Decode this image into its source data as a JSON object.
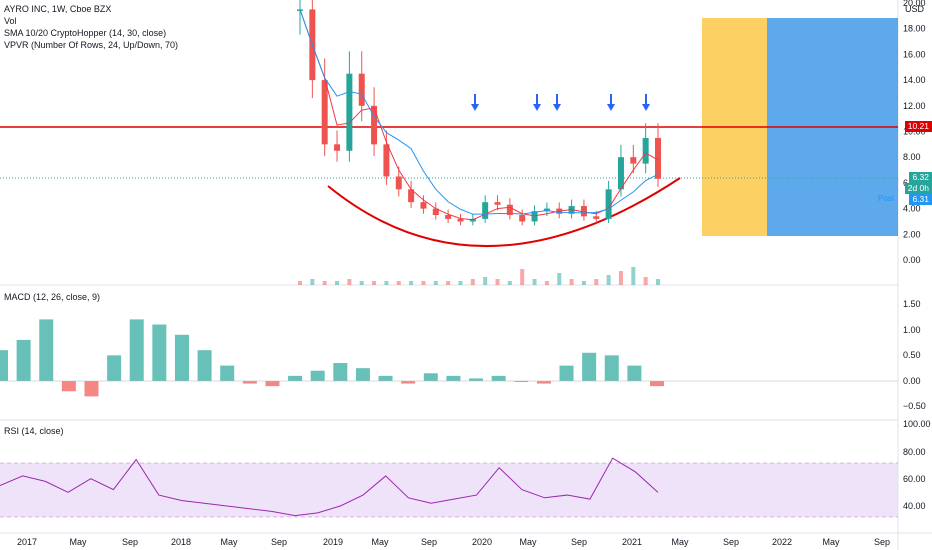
{
  "header": {
    "title": "AYRO INC, 1W, Cboe BZX",
    "legend": [
      "Vol",
      "SMA 10/20 CryptoHopper (14, 30, close)",
      "VPVR (Number Of Rows, 24, Up/Down, 70)"
    ]
  },
  "price_axis": {
    "currency": "USD",
    "ticks": [
      "20.00",
      "18.00",
      "16.00",
      "14.00",
      "12.00",
      "10.00",
      "8.00",
      "6.00",
      "4.00",
      "2.00",
      "0.00"
    ],
    "last_price": "6.32",
    "countdown": "2d 0h",
    "post_label": "Post",
    "post_price": "6.31",
    "resistance_label": "10.21"
  },
  "time_axis": {
    "labels": [
      "2017",
      "May",
      "Sep",
      "2018",
      "May",
      "Sep",
      "2019",
      "May",
      "Sep",
      "2020",
      "May",
      "Sep",
      "2021",
      "May",
      "Sep",
      "2022",
      "May",
      "Sep"
    ]
  },
  "macd": {
    "label": "MACD (12, 26, close, 9)",
    "ticks": [
      "1.50",
      "1.00",
      "0.50",
      "0.00",
      "−0.50"
    ]
  },
  "rsi": {
    "label": "RSI (14, close)",
    "ticks": [
      "100.00",
      "80.00",
      "60.00",
      "40.00"
    ]
  },
  "colors": {
    "up": "#26a69a",
    "down": "#ef5350",
    "sma_fast": "#f23645",
    "sma_slow": "#2196f3",
    "resistance": "#e00000",
    "arc": "#e00000",
    "arrow": "#2962ff",
    "rect_yellow": "#fbc02d",
    "rect_blue": "#1e88e5",
    "rsi_line": "#9c27b0",
    "rsi_band": "#e8d7f7"
  },
  "chart_data": {
    "type": "line",
    "symbol": "AYRO",
    "interval": "1W",
    "resistance_level": 10.21,
    "last_close": 6.32,
    "post_market": 6.31,
    "price_ylim": [
      -1,
      21
    ],
    "price_series": {
      "name": "close",
      "x": [
        "2018-10",
        "2018-11",
        "2018-12",
        "2019-01",
        "2019-02",
        "2019-03",
        "2019-04",
        "2019-05",
        "2019-06",
        "2019-07",
        "2019-08",
        "2019-09",
        "2019-10",
        "2019-11",
        "2019-12",
        "2020-01",
        "2020-02",
        "2020-03",
        "2020-04",
        "2020-05",
        "2020-06",
        "2020-07",
        "2020-08",
        "2020-09",
        "2020-10",
        "2020-11",
        "2020-12",
        "2021-01",
        "2021-02",
        "2021-03"
      ],
      "values": [
        19.5,
        14.0,
        9.0,
        8.5,
        14.5,
        12.0,
        9.0,
        6.5,
        5.5,
        4.5,
        4.0,
        3.5,
        3.2,
        3.0,
        3.2,
        4.5,
        4.3,
        3.5,
        3.0,
        3.8,
        4.0,
        3.6,
        4.2,
        3.4,
        3.2,
        5.5,
        8.0,
        7.5,
        9.5,
        6.32
      ]
    },
    "macd_ylim": [
      -0.8,
      1.8
    ],
    "macd_hist": [
      0.6,
      0.8,
      1.2,
      -0.2,
      -0.3,
      0.5,
      1.2,
      1.1,
      0.9,
      0.6,
      0.3,
      -0.05,
      -0.1,
      0.1,
      0.2,
      0.35,
      0.25,
      0.1,
      -0.05,
      0.15,
      0.1,
      0.05,
      0.1,
      -0.02,
      -0.05,
      0.3,
      0.55,
      0.5,
      0.3,
      -0.1
    ],
    "rsi_ylim": [
      30,
      100
    ],
    "rsi_band": [
      30,
      70
    ],
    "rsi_values": [
      55,
      62,
      58,
      50,
      60,
      52,
      74,
      48,
      44,
      42,
      40,
      38,
      36,
      33,
      35,
      40,
      48,
      62,
      46,
      42,
      45,
      48,
      68,
      52,
      46,
      48,
      45,
      75,
      65,
      50
    ]
  }
}
